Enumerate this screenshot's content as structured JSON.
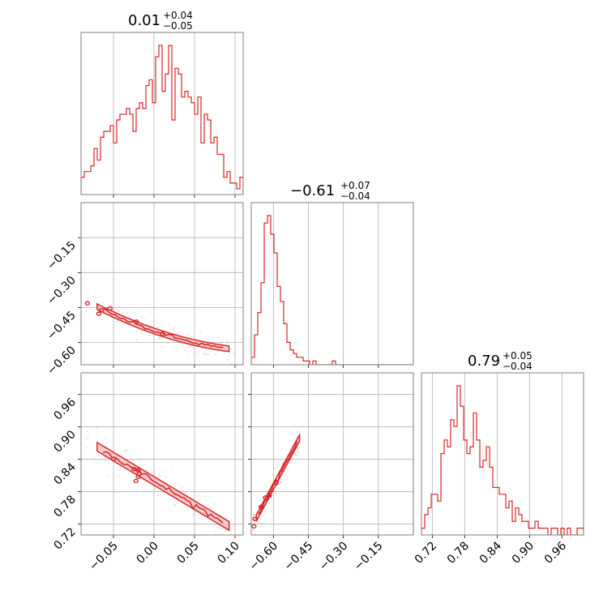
{
  "colors": {
    "accent": "#d62728",
    "grid": "#b0b0b0",
    "frame": "#7f7f7f",
    "fill": "#f2b8b9"
  },
  "chart_data": {
    "type": "corner",
    "parameters": [
      {
        "range": [
          -0.09,
          0.11
        ],
        "ticks": [
          -0.05,
          0.0,
          0.05,
          0.1
        ],
        "tick_labels": [
          "−0.05",
          "0.00",
          "0.05",
          "0.10"
        ]
      },
      {
        "range": [
          -0.695,
          -0.0
        ],
        "ticks": [
          -0.6,
          -0.45,
          -0.3,
          -0.15
        ],
        "tick_labels": [
          "−0.60",
          "−0.45",
          "−0.30",
          "−0.15"
        ]
      },
      {
        "range": [
          0.7,
          1.0
        ],
        "ticks": [
          0.72,
          0.78,
          0.84,
          0.9,
          0.96
        ],
        "tick_labels": [
          "0.72",
          "0.78",
          "0.84",
          "0.90",
          "0.96"
        ]
      }
    ],
    "titles": [
      {
        "median": "0.01",
        "upper": "+0.04",
        "lower": "−0.05"
      },
      {
        "median": "−0.61",
        "upper": "+0.07",
        "lower": "−0.04"
      },
      {
        "median": "0.79",
        "upper": "+0.05",
        "lower": "−0.04"
      }
    ],
    "histograms": [
      {
        "bin_edges_range": [
          -0.09,
          0.11
        ],
        "counts": [
          3,
          4,
          4,
          5,
          8,
          6,
          10,
          11,
          11,
          12,
          9,
          13,
          14,
          14,
          15,
          14,
          11,
          15,
          16,
          15,
          19,
          20,
          16,
          24,
          26,
          18,
          21,
          26,
          13,
          22,
          21,
          17,
          18,
          17,
          16,
          14,
          17,
          9,
          14,
          13,
          9,
          10,
          7,
          7,
          3,
          4,
          2,
          2,
          1,
          3
        ]
      },
      {
        "bin_edges_range": [
          -0.695,
          0.0
        ],
        "counts": [
          2,
          8,
          14,
          22,
          38,
          40,
          35,
          30,
          21,
          17,
          11,
          6,
          4,
          3,
          2,
          2,
          1,
          1,
          0,
          1,
          0,
          0,
          0,
          0,
          0,
          1,
          0,
          0,
          0,
          0,
          0,
          0,
          0,
          0,
          0,
          0,
          0,
          0,
          0,
          0,
          0,
          0,
          0,
          0,
          0,
          0,
          0,
          0,
          0,
          0
        ]
      },
      {
        "bin_edges_range": [
          0.7,
          1.0
        ],
        "counts": [
          1,
          3,
          4,
          6,
          6,
          5,
          12,
          14,
          13,
          17,
          16,
          22,
          19,
          14,
          12,
          13,
          18,
          14,
          10,
          11,
          13,
          10,
          7,
          7,
          6,
          6,
          4,
          5,
          2,
          4,
          3,
          2,
          2,
          1,
          1,
          2,
          1,
          1,
          1,
          0,
          1,
          1,
          0,
          1,
          0,
          1,
          0,
          0,
          1,
          1
        ]
      }
    ],
    "pairs": [
      {
        "x_param": 0,
        "y_param": 1,
        "relation": "y = -0.55 - 1.2x + 4x^2"
      },
      {
        "x_param": 0,
        "y_param": 2,
        "relation": "y = 0.80 - 0.9x"
      },
      {
        "x_param": 1,
        "y_param": 2,
        "relation": "y = 1.27 + 0.8x"
      }
    ]
  }
}
